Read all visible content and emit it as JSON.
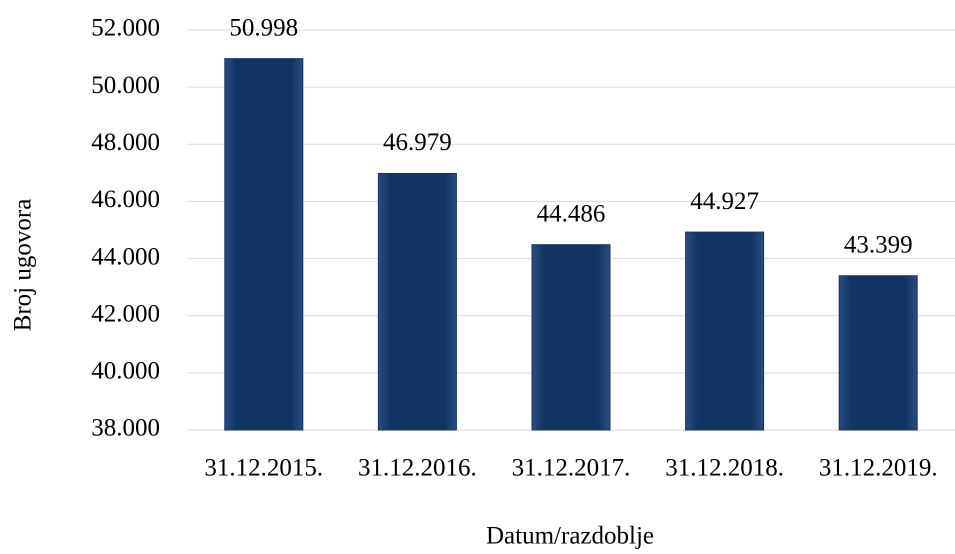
{
  "chart_data": {
    "type": "bar",
    "x_label": "Datum/razdoblje",
    "y_label": "Broj ugovora",
    "categories": [
      "31.12.2015.",
      "31.12.2016.",
      "31.12.2017.",
      "31.12.2018.",
      "31.12.2019."
    ],
    "values": [
      50998,
      46979,
      44486,
      44927,
      43399
    ],
    "value_labels": [
      "50.998",
      "46.979",
      "44.486",
      "44.927",
      "43.399"
    ],
    "color": "#123463",
    "ylim": [
      38000,
      52000
    ],
    "yticks": [
      {
        "value": 38000,
        "label": "38.000"
      },
      {
        "value": 40000,
        "label": "40.000"
      },
      {
        "value": 42000,
        "label": "42.000"
      },
      {
        "value": 44000,
        "label": "44.000"
      },
      {
        "value": 46000,
        "label": "46.000"
      },
      {
        "value": 48000,
        "label": "48.000"
      },
      {
        "value": 50000,
        "label": "50.000"
      },
      {
        "value": 52000,
        "label": "52.000"
      }
    ],
    "grid": true
  }
}
